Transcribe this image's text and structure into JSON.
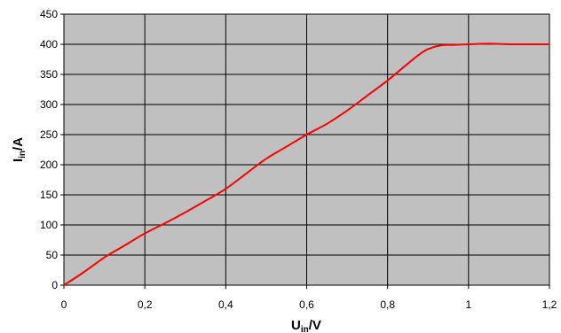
{
  "chart_data": {
    "type": "line",
    "xlabel": {
      "main": "U",
      "sub": "in",
      "unit": "/V"
    },
    "ylabel": {
      "main": "I",
      "sub": "in",
      "unit": "/A"
    },
    "xlim": [
      0,
      1.2
    ],
    "ylim": [
      0,
      450
    ],
    "x_ticks": [
      "0",
      "0,2",
      "0,4",
      "0,6",
      "0,8",
      "1",
      "1,2"
    ],
    "y_ticks": [
      "0",
      "50",
      "100",
      "150",
      "200",
      "250",
      "300",
      "350",
      "400",
      "450"
    ],
    "grid": true,
    "plot_background": "#c0c0c0",
    "series": [
      {
        "color": "#ff0000",
        "x": [
          0,
          0.05,
          0.1,
          0.15,
          0.2,
          0.25,
          0.3,
          0.35,
          0.4,
          0.45,
          0.5,
          0.55,
          0.6,
          0.65,
          0.7,
          0.75,
          0.8,
          0.85,
          0.88,
          0.9,
          0.93,
          0.96,
          1.0,
          1.05,
          1.1,
          1.15,
          1.2
        ],
        "y": [
          0,
          22,
          46,
          66,
          86,
          103,
          121,
          140,
          160,
          185,
          210,
          230,
          250,
          268,
          290,
          315,
          340,
          368,
          384,
          392,
          398,
          399,
          400,
          401,
          400,
          400,
          400
        ]
      }
    ]
  }
}
